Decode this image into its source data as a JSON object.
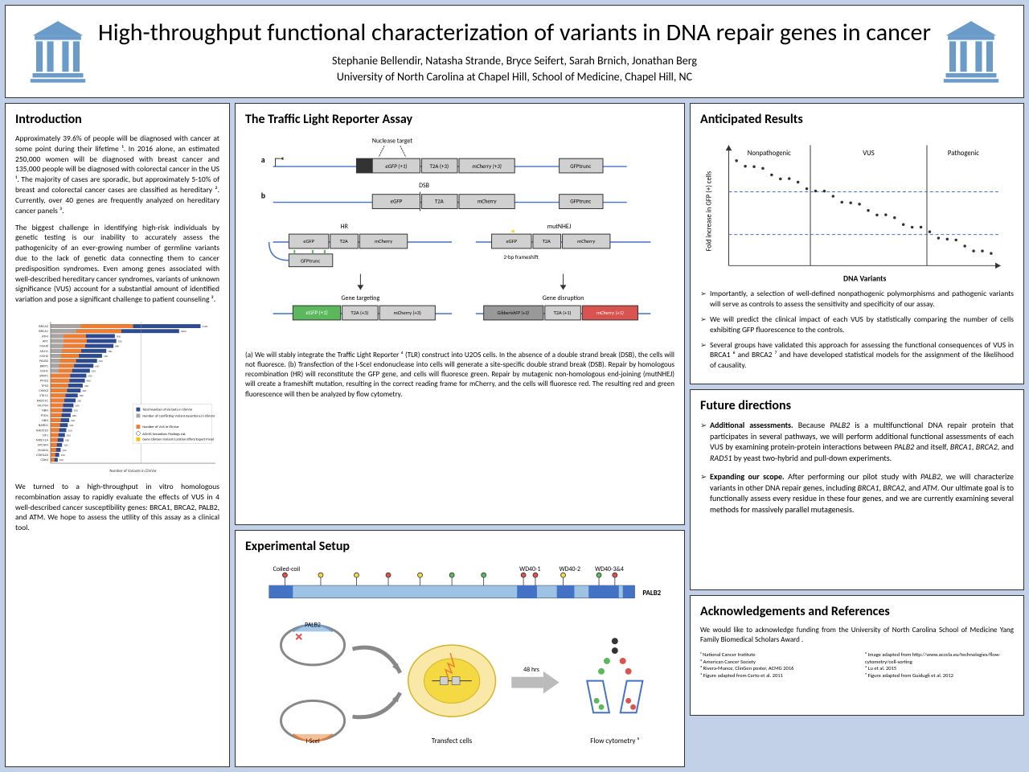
{
  "title": "High-throughput functional characterization of variants in DNA repair genes in cancer",
  "authors": "Stephanie Bellendir, Natasha Strande, Bryce Seifert, Sarah Brnich, Jonathan Berg",
  "affiliation": "University of North Carolina at Chapel Hill, School of Medicine, Chapel Hill, NC",
  "colors": {
    "bg": "#c3d1e8",
    "logo": "#6b9bc9",
    "bar_blue": "#2e4b8f",
    "bar_orange": "#ed7d31",
    "bar_gray": "#a5a5a5",
    "green": "#5cb85c",
    "red": "#d9534f",
    "yellow": "#f4d942",
    "lt_blue": "#9cc3e4",
    "dk_blue": "#4472c4"
  },
  "intro": {
    "heading": "Introduction",
    "p1": "Approximately 39.6% of people will be diagnosed with cancer at some point during their lifetime ¹. In 2016 alone, an estimated 250,000 women will be diagnosed with breast cancer and 135,000 people will be diagnosed with colorectal cancer in the US ¹. The majority of cases are sporadic, but approximately 5-10% of breast and colorectal cancer cases are classified as hereditary ². Currently, over 40 genes are frequently analyzed on hereditary cancer panels ³.",
    "p2": "The biggest challenge in identifying high-risk individuals by genetic testing is our inability to accurately assess the pathogenicity of an ever-growing number of germline variants due to the lack of genetic data connecting them to cancer predisposition syndromes. Even among genes associated with well-described hereditary cancer syndromes, variants of unknown significance (VUS) account for a substantial amount of identified variation and pose a significant challenge to patient counseling ³.",
    "p3": "We turned to a high-throughput in vitro homologous recombination assay to rapidly evaluate the effects of VUS in 4 well-described cancer susceptibility genes: BRCA1, BRCA2, PALB2, and ATM. We hope to assess the utility of this assay as a clinical tool.",
    "chart": {
      "genes": [
        "BRCA2",
        "BRCA1",
        "ATM",
        "APC",
        "MSH6",
        "MLH1",
        "MSH2",
        "PALB2",
        "BRIP1",
        "CDH1",
        "BMP1",
        "PMS2",
        "TP53",
        "CHEK2",
        "STK11",
        "RAD51C",
        "MUTYH",
        "NBN",
        "PTEN",
        "NBN",
        "BARD1",
        "RAD51D",
        "NF1",
        "MRE11A",
        "EPCAM",
        "SMAD4",
        "CDKN2A",
        "CDK4"
      ],
      "values": [
        2100,
        1800,
        900,
        920,
        880,
        780,
        720,
        650,
        600,
        550,
        500,
        480,
        450,
        420,
        380,
        350,
        320,
        300,
        280,
        260,
        240,
        220,
        200,
        180,
        160,
        140,
        120,
        100
      ],
      "legend": [
        "Total Number of Variants in ClinVar",
        "Number of Conflicting Variant Assertions in ClinVar",
        "Number of VUS in ClinVar",
        "ACMG Secondary Findings List",
        "Gene ClinGen Variant Curation Effort/Expert Panel"
      ],
      "xlabel": "Number of Variants in ClinVar"
    }
  },
  "tlr": {
    "heading": "The Traffic Light Reporter Assay",
    "caption": "(a) We will stably integrate the Traffic Light Reporter ⁴ (TLR) construct into U2OS cells. In the absence of a double strand break (DSB), the cells will not fluoresce. (b) Transfection of the I-SceI endonuclease into cells will generate a site-specific double strand break (DSB). Repair by homologous recombination (HR) will reconstitute the GFP gene, and cells will fluoresce green. Repair by mutagenic non-homologous end-joining (mutNHEJ) will create a frameshift mutation, resulting in the correct reading frame for mCherry, and the cells will fluoresce red. The resulting red and green fluorescence will then be analyzed by flow cytometry.",
    "labels": {
      "nuclease": "Nuclease target",
      "egfp": "eGFP (+1)",
      "t2a": "T2A (+3)",
      "mcherry": "mCherry (+3)",
      "gfptrunc": "GFPtrunc",
      "dsb": "DSB",
      "hr": "HR",
      "mutnhej": "mutNHEJ",
      "frameshift": "2-bp frameshift",
      "gt": "Gene targeting",
      "gd": "Gene disruption",
      "gibberish": "GibberishFP (+3)"
    }
  },
  "exp": {
    "heading": "Experimental Setup",
    "labels": {
      "coiled": "Coiled-coil",
      "wd401": "WD40-1",
      "wd402": "WD40-2",
      "wd4034": "WD40-3&4",
      "palb2": "PALB2",
      "iscei": "I-SceI",
      "transfect": "Transfect cells",
      "flow": "Flow cytometry ⁵",
      "hrs": "48 hrs"
    }
  },
  "results": {
    "heading": "Anticipated Results",
    "ylabel": "Fold increase in GFP (+) cells",
    "xlabel": "DNA Variants",
    "regions": [
      "Nonpathogenic",
      "VUS",
      "Pathogenic"
    ],
    "b1": "Importantly, a selection of well-defined nonpathogenic polymorphisms and pathogenic variants will serve as controls to assess the sensitivity and specificity of our assay.",
    "b2": "We will predict the clinical impact of each VUS by statistically comparing the number of cells exhibiting GFP fluorescence to the controls.",
    "b3": "Several groups have validated this approach for assessing the functional consequences of VUS in BRCA1 ⁶ and BRCA2 ⁷ and have developed statistical models for the assignment of the likelihood of causality."
  },
  "future": {
    "heading": "Future directions",
    "b1": "Additional assessments. Because PALB2 is a multifunctional DNA repair protein that participates in several pathways, we will perform additional functional assessments of each VUS by examining protein-protein interactions between PALB2 and itself, BRCA1, BRCA2, and RAD51 by yeast two-hybrid and pull-down experiments.",
    "b2": "Expanding our scope. After performing our pilot study with PALB2, we will characterize variants in other DNA repair genes, including BRCA1, BRCA2, and ATM. Our ultimate goal is to functionally assess every residue in these four genes, and we are currently examining several methods for massively parallel mutagenesis."
  },
  "ack": {
    "heading": "Acknowledgements and References",
    "text": "We would like to acknowledge funding from the University of North Carolina School of Medicine Yang Family Biomedical Scholars Award .",
    "refs_left": "¹ National Cancer Institute\n² American Cancer Society\n³ Rivera-Munoz, ClinGen poster, ACMG 2016\n⁴ Figure adapted from Certo et al. 2011",
    "refs_right": "⁵ Image adapted from http://www.accela.eu/technologies/flow-cytometry/cell-sorting\n⁶ Lu et al. 2015\n⁷ Figure adapted from Guidugli et al. 2012"
  }
}
